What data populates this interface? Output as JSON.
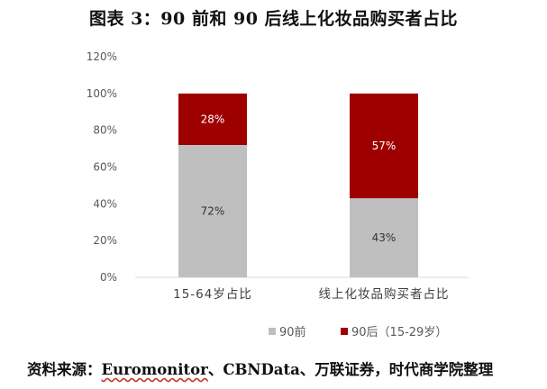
{
  "title": "图表 3：90 前和 90 后线上化妆品购买者占比",
  "source": {
    "label": "资料来源：",
    "underlined": "Euromonitor",
    "rest": "、CBNData、万联证券，时代商学院整理"
  },
  "colors": {
    "series_90_before": "#bfbfbf",
    "series_90_after": "#9e0000",
    "label_on_gray": "#333333",
    "label_on_red": "#ffffff"
  },
  "chart_data": {
    "type": "bar",
    "stacked": true,
    "categories": [
      "15-64岁占比",
      "线上化妆品购买者占比"
    ],
    "series": [
      {
        "name": "90前",
        "values": [
          72,
          43
        ],
        "labels": [
          "72%",
          "43%"
        ]
      },
      {
        "name": "90后（15-29岁）",
        "values": [
          28,
          57
        ],
        "labels": [
          "28%",
          "57%"
        ]
      }
    ],
    "ylim": [
      0,
      120
    ],
    "yticks": [
      0,
      20,
      40,
      60,
      80,
      100,
      120
    ],
    "ytick_labels": [
      "0%",
      "20%",
      "40%",
      "60%",
      "80%",
      "100%",
      "120%"
    ],
    "legend": {
      "position": "bottom",
      "entries": [
        "90前",
        "90后（15-29岁）"
      ]
    },
    "grid": false
  }
}
